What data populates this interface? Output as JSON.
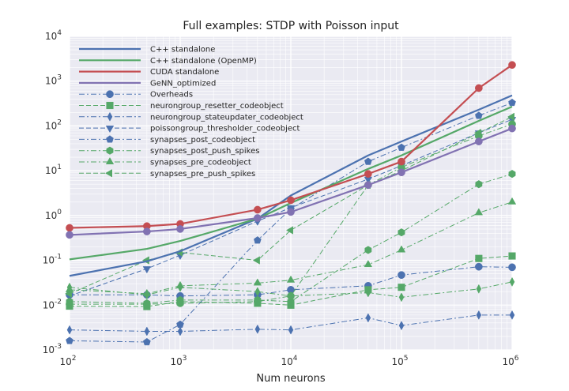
{
  "chart_data": {
    "type": "line",
    "title": "Full examples: STDP with Poisson input",
    "xlabel": "Num neurons",
    "ylabel": "",
    "xscale": "log",
    "yscale": "log",
    "xlim": [
      100,
      1000000
    ],
    "ylim": [
      0.001,
      10000
    ],
    "grid": true,
    "legend_position": "top-left",
    "x_ticks": [
      {
        "base": "10",
        "exp": "2"
      },
      {
        "base": "10",
        "exp": "3"
      },
      {
        "base": "10",
        "exp": "4"
      },
      {
        "base": "10",
        "exp": "5"
      },
      {
        "base": "10",
        "exp": "6"
      }
    ],
    "y_ticks": [
      {
        "value": 0.001,
        "base": "10",
        "exp": "-3"
      },
      {
        "value": 0.01,
        "base": "10",
        "exp": "-2"
      },
      {
        "value": 0.1,
        "base": "10",
        "exp": "-1"
      },
      {
        "value": 1,
        "base": "10",
        "exp": "0"
      },
      {
        "value": 10,
        "base": "10",
        "exp": "1"
      },
      {
        "value": 100,
        "base": "10",
        "exp": "2"
      },
      {
        "value": 1000,
        "base": "10",
        "exp": "3"
      },
      {
        "value": 10000,
        "base": "10",
        "exp": "4"
      }
    ],
    "series": [
      {
        "name": "C++ standalone",
        "color": "#4c72b0",
        "dash": "solid",
        "width": 2.2,
        "marker": "none",
        "x": [
          100,
          500,
          1000,
          5000,
          10000,
          50000,
          100000,
          500000,
          1000000
        ],
        "y": [
          0.045,
          0.095,
          0.16,
          0.85,
          2.8,
          22,
          45,
          230,
          480
        ]
      },
      {
        "name": "C++ standalone (OpenMP)",
        "color": "#55a868",
        "dash": "solid",
        "width": 2.2,
        "marker": "none",
        "x": [
          100,
          500,
          1000,
          5000,
          10000,
          50000,
          100000,
          500000,
          1000000
        ],
        "y": [
          0.105,
          0.18,
          0.27,
          0.85,
          1.9,
          11,
          22,
          130,
          270
        ]
      },
      {
        "name": "CUDA standalone",
        "color": "#c44e52",
        "dash": "solid",
        "width": 2.2,
        "marker": "circle",
        "x": [
          100,
          500,
          1000,
          5000,
          10000,
          50000,
          100000,
          500000,
          1000000
        ],
        "y": [
          0.53,
          0.58,
          0.65,
          1.35,
          2.2,
          8.5,
          16,
          700,
          2300
        ]
      },
      {
        "name": "GeNN_optimized",
        "color": "#8172b2",
        "dash": "solid",
        "width": 2.2,
        "marker": "circle",
        "x": [
          100,
          500,
          1000,
          5000,
          10000,
          50000,
          100000,
          500000,
          1000000
        ],
        "y": [
          0.37,
          0.44,
          0.5,
          0.88,
          1.2,
          4.8,
          9.2,
          45,
          88
        ]
      },
      {
        "name": "Overheads",
        "color": "#4c72b0",
        "dash": "dashdot",
        "width": 1,
        "marker": "circle",
        "x": [
          100,
          500,
          1000,
          5000,
          10000,
          50000,
          100000,
          500000,
          1000000
        ],
        "y": [
          0.017,
          0.017,
          0.016,
          0.017,
          0.022,
          0.027,
          0.047,
          0.072,
          0.07
        ]
      },
      {
        "name": "neurongroup_resetter_codeobject",
        "color": "#55a868",
        "dash": "dashed",
        "width": 1,
        "marker": "square",
        "x": [
          100,
          500,
          1000,
          5000,
          10000,
          50000,
          100000,
          500000,
          1000000
        ],
        "y": [
          0.0095,
          0.0093,
          0.012,
          0.011,
          0.01,
          0.022,
          0.025,
          0.11,
          0.125
        ]
      },
      {
        "name": "neurongroup_stateupdater_codeobject",
        "color": "#4c72b0",
        "dash": "dashdot",
        "width": 1,
        "marker": "thin_diamond",
        "x": [
          100,
          500,
          1000,
          5000,
          10000,
          50000,
          100000,
          500000,
          1000000
        ],
        "y": [
          0.0028,
          0.0026,
          0.0026,
          0.0029,
          0.0028,
          0.0052,
          0.0035,
          0.006,
          0.006
        ]
      },
      {
        "name": "poissongroup_thresholder_codeobject",
        "color": "#4c72b0",
        "dash": "dashed",
        "width": 1,
        "marker": "triangle_down",
        "x": [
          100,
          500,
          1000,
          5000,
          10000,
          50000,
          100000,
          500000,
          1000000
        ],
        "y": [
          0.016,
          0.065,
          0.13,
          0.75,
          1.5,
          6.5,
          13,
          70,
          140
        ]
      },
      {
        "name": "synapses_post_codeobject",
        "color": "#4c72b0",
        "dash": "dashdot",
        "width": 1,
        "marker": "pentagon",
        "x": [
          100,
          500,
          1000,
          5000,
          10000,
          50000,
          100000,
          500000,
          1000000
        ],
        "y": [
          0.0016,
          0.0015,
          0.0037,
          0.28,
          1.4,
          16,
          33,
          170,
          330
        ]
      },
      {
        "name": "synapses_post_push_spikes",
        "color": "#55a868",
        "dash": "dashdot",
        "width": 1,
        "marker": "hexagon",
        "x": [
          100,
          500,
          1000,
          5000,
          10000,
          50000,
          100000,
          500000,
          1000000
        ],
        "y": [
          0.012,
          0.011,
          0.013,
          0.013,
          0.012,
          0.17,
          0.42,
          5,
          8.5
        ]
      },
      {
        "name": "synapses_pre_codeobject",
        "color": "#55a868",
        "dash": "dashdot",
        "width": 1,
        "marker": "triangle_up",
        "x": [
          100,
          500,
          1000,
          5000,
          10000,
          50000,
          100000,
          500000,
          1000000
        ],
        "y": [
          0.022,
          0.018,
          0.027,
          0.031,
          0.036,
          0.08,
          0.17,
          1.15,
          2
        ]
      },
      {
        "name": "synapses_pre_push_spikes",
        "color": "#55a868",
        "dash": "dashed",
        "width": 1,
        "marker": "triangle_left",
        "x": [
          100,
          500,
          1000,
          5000,
          10000,
          50000,
          100000,
          500000,
          1000000
        ],
        "y": [
          0.018,
          0.1,
          0.15,
          0.1,
          0.47,
          4.8,
          10,
          70,
          160
        ]
      },
      {
        "name": "",
        "color": "#55a868",
        "dash": "dashdot",
        "width": 1,
        "marker": "thin_diamond",
        "x": [
          100,
          500,
          1000,
          5000,
          10000,
          50000,
          100000,
          500000,
          1000000
        ],
        "y": [
          0.025,
          0.017,
          0.025,
          0.02,
          0.016,
          0.019,
          0.015,
          0.023,
          0.033
        ]
      },
      {
        "name": "",
        "color": "#55a868",
        "dash": "dashdot",
        "width": 1,
        "marker": "circle",
        "x": [
          100,
          500,
          1000,
          5000,
          10000,
          50000,
          100000,
          500000,
          1000000
        ],
        "y": [
          0.0105,
          0.0105,
          0.011,
          0.012,
          0.016,
          4.8,
          12,
          60,
          110
        ]
      }
    ]
  }
}
